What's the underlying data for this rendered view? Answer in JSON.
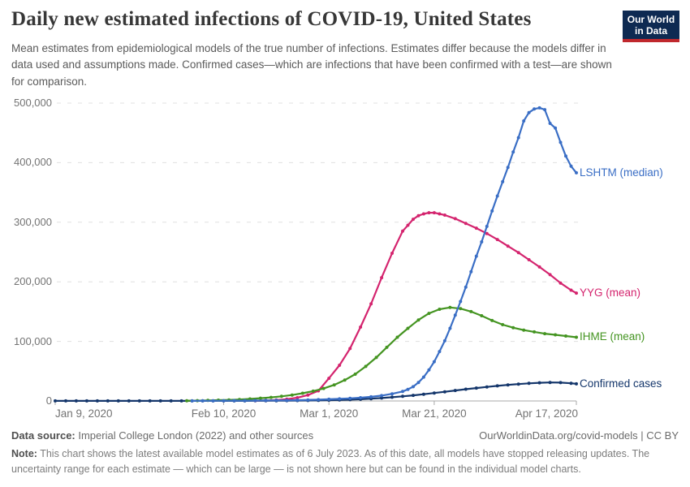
{
  "header": {
    "title": "Daily new estimated infections of COVID-19, United States",
    "subtitle": "Mean estimates from epidemiological models of the true number of infections. Estimates differ because the models differ in data used and assumptions made. Confirmed cases—which are infections that have been confirmed with a test—are shown for comparison.",
    "logo": {
      "line1": "Our World",
      "line2": "in Data",
      "bg_color": "#0e2a52",
      "stripe_color": "#c0282d"
    }
  },
  "chart_data": {
    "type": "line",
    "title": "Daily new estimated infections of COVID-19, United States",
    "x_unit": "days since Jan 9, 2020",
    "xlim": [
      0,
      99
    ],
    "ylim": [
      0,
      500000
    ],
    "grid": "horizontal dashed",
    "legend_position": "right edge labels",
    "x_ticks": [
      {
        "day": 0,
        "label": "Jan 9, 2020",
        "align": "left"
      },
      {
        "day": 32,
        "label": "Feb 10, 2020",
        "align": "center"
      },
      {
        "day": 52,
        "label": "Mar 1, 2020",
        "align": "center"
      },
      {
        "day": 72,
        "label": "Mar 21, 2020",
        "align": "center"
      },
      {
        "day": 99,
        "label": "Apr 17, 2020",
        "align": "right"
      }
    ],
    "y_ticks": [
      {
        "value": 0,
        "label": "0"
      },
      {
        "value": 100000,
        "label": "100,000"
      },
      {
        "value": 200000,
        "label": "200,000"
      },
      {
        "value": 300000,
        "label": "300,000"
      },
      {
        "value": 400000,
        "label": "400,000"
      },
      {
        "value": 500000,
        "label": "500,000"
      }
    ],
    "series": [
      {
        "name": "Confirmed cases",
        "color": "#14366b",
        "points": [
          [
            0,
            100
          ],
          [
            2,
            100
          ],
          [
            4,
            100
          ],
          [
            6,
            100
          ],
          [
            8,
            100
          ],
          [
            10,
            100
          ],
          [
            12,
            100
          ],
          [
            14,
            100
          ],
          [
            16,
            100
          ],
          [
            18,
            100
          ],
          [
            20,
            100
          ],
          [
            22,
            100
          ],
          [
            24,
            100
          ],
          [
            26,
            100
          ],
          [
            28,
            150
          ],
          [
            30,
            150
          ],
          [
            32,
            150
          ],
          [
            34,
            200
          ],
          [
            36,
            200
          ],
          [
            38,
            250
          ],
          [
            40,
            300
          ],
          [
            42,
            400
          ],
          [
            44,
            500
          ],
          [
            46,
            650
          ],
          [
            48,
            800
          ],
          [
            50,
            1000
          ],
          [
            52,
            1300
          ],
          [
            54,
            1700
          ],
          [
            56,
            2200
          ],
          [
            58,
            2900
          ],
          [
            60,
            3800
          ],
          [
            62,
            4900
          ],
          [
            64,
            6200
          ],
          [
            66,
            7700
          ],
          [
            68,
            9400
          ],
          [
            70,
            11300
          ],
          [
            72,
            13300
          ],
          [
            74,
            15400
          ],
          [
            76,
            17600
          ],
          [
            78,
            19700
          ],
          [
            80,
            21700
          ],
          [
            82,
            23600
          ],
          [
            84,
            25400
          ],
          [
            86,
            27000
          ],
          [
            88,
            28400
          ],
          [
            90,
            29600
          ],
          [
            92,
            30500
          ],
          [
            94,
            31000
          ],
          [
            96,
            30800
          ],
          [
            98,
            29700
          ],
          [
            99,
            28800
          ]
        ]
      },
      {
        "name": "YYG (mean)",
        "color": "#d4246e",
        "points": [
          [
            38,
            500
          ],
          [
            40,
            900
          ],
          [
            42,
            1600
          ],
          [
            44,
            3000
          ],
          [
            46,
            5500
          ],
          [
            48,
            10000
          ],
          [
            50,
            17000
          ],
          [
            52,
            38000
          ],
          [
            54,
            60000
          ],
          [
            56,
            88000
          ],
          [
            58,
            124000
          ],
          [
            60,
            163000
          ],
          [
            62,
            207000
          ],
          [
            64,
            248000
          ],
          [
            66,
            285000
          ],
          [
            67,
            295000
          ],
          [
            68,
            305000
          ],
          [
            69,
            311000
          ],
          [
            70,
            314000
          ],
          [
            71,
            316000
          ],
          [
            72,
            316000
          ],
          [
            73,
            314000
          ],
          [
            74,
            312000
          ],
          [
            76,
            306000
          ],
          [
            78,
            298000
          ],
          [
            80,
            290000
          ],
          [
            82,
            281000
          ],
          [
            84,
            271000
          ],
          [
            86,
            260000
          ],
          [
            88,
            249000
          ],
          [
            90,
            237000
          ],
          [
            92,
            225000
          ],
          [
            94,
            212000
          ],
          [
            96,
            198000
          ],
          [
            98,
            186000
          ],
          [
            99,
            181000
          ]
        ]
      },
      {
        "name": "IHME (mean)",
        "color": "#449421",
        "points": [
          [
            25,
            400
          ],
          [
            27,
            600
          ],
          [
            29,
            900
          ],
          [
            31,
            1300
          ],
          [
            33,
            1800
          ],
          [
            35,
            2500
          ],
          [
            37,
            3400
          ],
          [
            39,
            4600
          ],
          [
            41,
            6000
          ],
          [
            43,
            7800
          ],
          [
            45,
            10000
          ],
          [
            47,
            13000
          ],
          [
            49,
            16500
          ],
          [
            51,
            21000
          ],
          [
            53,
            27000
          ],
          [
            55,
            35000
          ],
          [
            57,
            45000
          ],
          [
            59,
            58000
          ],
          [
            61,
            73000
          ],
          [
            63,
            90000
          ],
          [
            65,
            107000
          ],
          [
            67,
            122000
          ],
          [
            69,
            136000
          ],
          [
            71,
            147000
          ],
          [
            73,
            154000
          ],
          [
            75,
            157000
          ],
          [
            77,
            155000
          ],
          [
            79,
            150000
          ],
          [
            81,
            143000
          ],
          [
            83,
            135000
          ],
          [
            85,
            128000
          ],
          [
            87,
            123000
          ],
          [
            89,
            119000
          ],
          [
            91,
            116000
          ],
          [
            93,
            113000
          ],
          [
            95,
            111000
          ],
          [
            97,
            109000
          ],
          [
            99,
            107000
          ]
        ]
      },
      {
        "name": "LSHTM (median)",
        "color": "#3a6ec5",
        "points": [
          [
            26,
            200
          ],
          [
            28,
            260
          ],
          [
            30,
            330
          ],
          [
            32,
            400
          ],
          [
            34,
            480
          ],
          [
            36,
            570
          ],
          [
            38,
            680
          ],
          [
            40,
            800
          ],
          [
            42,
            950
          ],
          [
            44,
            1150
          ],
          [
            46,
            1400
          ],
          [
            48,
            1750
          ],
          [
            50,
            2200
          ],
          [
            52,
            2800
          ],
          [
            54,
            3500
          ],
          [
            56,
            4400
          ],
          [
            58,
            5500
          ],
          [
            60,
            7000
          ],
          [
            62,
            9000
          ],
          [
            64,
            12000
          ],
          [
            66,
            16000
          ],
          [
            67,
            19500
          ],
          [
            68,
            24000
          ],
          [
            69,
            31000
          ],
          [
            70,
            40000
          ],
          [
            71,
            52000
          ],
          [
            72,
            66000
          ],
          [
            73,
            83000
          ],
          [
            74,
            101000
          ],
          [
            75,
            122000
          ],
          [
            76,
            144000
          ],
          [
            77,
            167000
          ],
          [
            78,
            191000
          ],
          [
            79,
            217000
          ],
          [
            80,
            243000
          ],
          [
            81,
            267000
          ],
          [
            82,
            293000
          ],
          [
            83,
            319000
          ],
          [
            84,
            344000
          ],
          [
            85,
            368000
          ],
          [
            86,
            392000
          ],
          [
            87,
            418000
          ],
          [
            88,
            442000
          ],
          [
            89,
            470000
          ],
          [
            90,
            484000
          ],
          [
            91,
            490000
          ],
          [
            92,
            492000
          ],
          [
            93,
            489000
          ],
          [
            94,
            466000
          ],
          [
            95,
            458000
          ],
          [
            96,
            434000
          ],
          [
            97,
            411000
          ],
          [
            98,
            394000
          ],
          [
            99,
            383000
          ]
        ]
      }
    ],
    "label_order_top_to_bottom": [
      "LSHTM (median)",
      "YYG (mean)",
      "IHME (mean)",
      "Confirmed cases"
    ]
  },
  "footer": {
    "data_source_label": "Data source:",
    "data_source_text": " Imperial College London (2022) and other sources",
    "attribution": "OurWorldinData.org/covid-models | CC BY",
    "note_label": "Note:",
    "note_text": " This chart shows the latest available model estimates as of 6 July 2023. As of this date, all models have stopped releasing updates. The uncertainty range for each estimate — which can be large — is not shown here but can be found in the individual model charts."
  }
}
